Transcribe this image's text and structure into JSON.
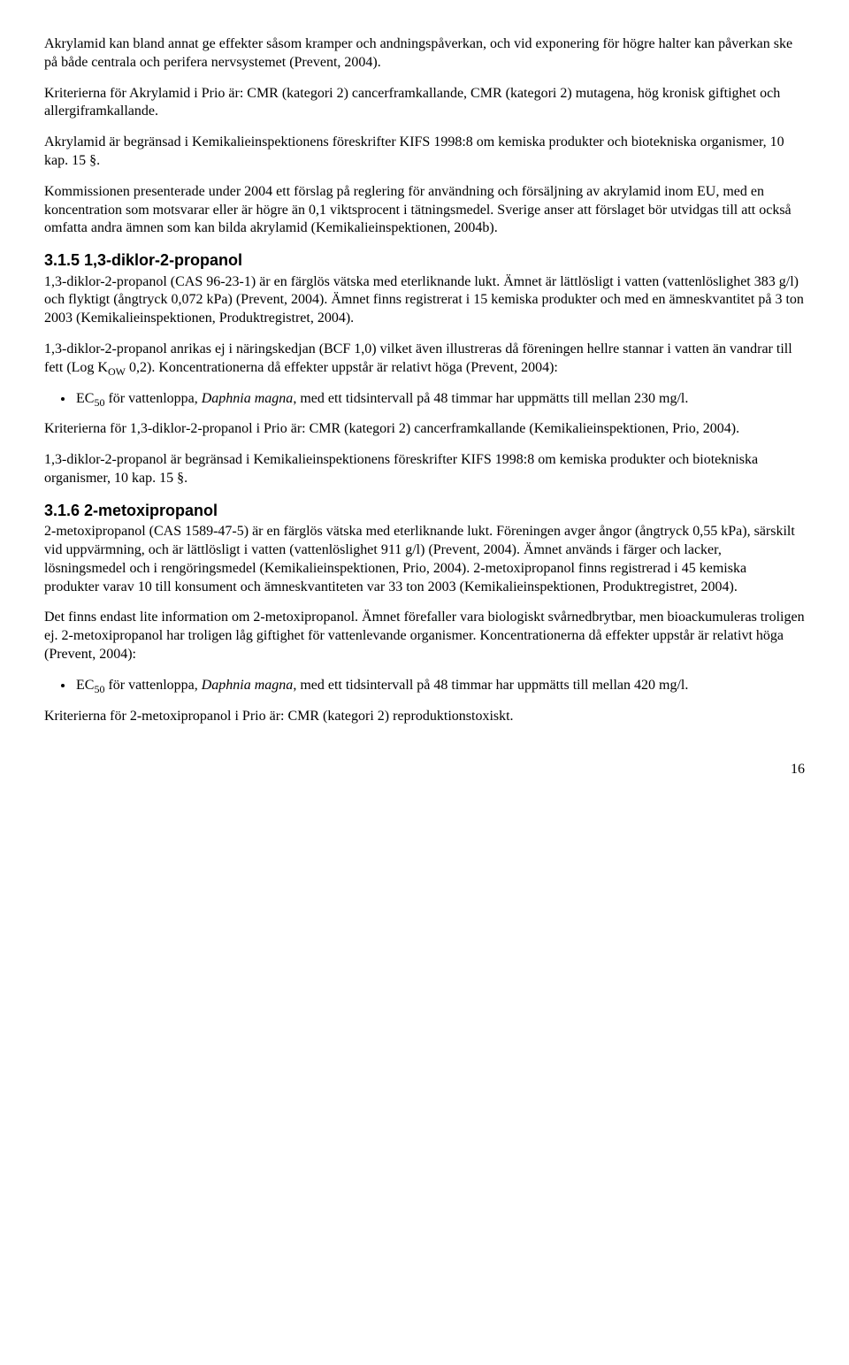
{
  "para1": "Akrylamid kan bland annat ge effekter såsom kramper och andningspåverkan, och vid exponering för högre halter kan påverkan ske på både centrala och perifera nervsystemet (Prevent, 2004).",
  "para2": "Kriterierna för Akrylamid i Prio är: CMR (kategori 2) cancerframkallande, CMR (kategori 2) mutagena, hög kronisk giftighet och allergiframkallande.",
  "para3": "Akrylamid är begränsad i Kemikalieinspektionens föreskrifter KIFS 1998:8 om kemiska produkter och biotekniska organismer, 10 kap. 15 §.",
  "para4": "Kommissionen presenterade under 2004 ett förslag på reglering för användning och försäljning av akrylamid inom EU, med en koncentration som motsvarar eller är högre än 0,1 viktsprocent i tätningsmedel. Sverige anser att förslaget bör utvidgas till att också omfatta andra ämnen som kan bilda akrylamid (Kemikalieinspektionen, 2004b).",
  "h315": "3.1.5 1,3-diklor-2-propanol",
  "para5": "1,3-diklor-2-propanol (CAS 96-23-1) är en färglös vätska med eterliknande lukt. Ämnet är lättlösligt i vatten (vattenlöslighet 383 g/l) och flyktigt (ångtryck 0,072 kPa) (Prevent, 2004). Ämnet finns registrerat i 15 kemiska produkter och med en ämneskvantitet på 3 ton 2003 (Kemikalieinspektionen, Produktregistret, 2004).",
  "para6_pre": "1,3-diklor-2-propanol anrikas ej i näringskedjan (BCF 1,0) vilket även illustreras då föreningen hellre stannar i vatten än vandrar till fett (Log K",
  "para6_sub": "OW",
  "para6_post": " 0,2). Koncentrationerna då effekter uppstår är relativt höga (Prevent, 2004):",
  "bullet1_pre": "EC",
  "bullet1_sub": "50",
  "bullet1_mid": " för vattenloppa, ",
  "bullet1_species": "Daphnia magna",
  "bullet1_post": ", med ett tidsintervall på 48 timmar har uppmätts till mellan 230 mg/l.",
  "para7": "Kriterierna för 1,3-diklor-2-propanol i Prio är: CMR (kategori 2) cancerframkallande (Kemikalieinspektionen, Prio, 2004).",
  "para8": "1,3-diklor-2-propanol är begränsad i Kemikalieinspektionens föreskrifter KIFS 1998:8 om kemiska produkter och biotekniska organismer, 10 kap. 15 §.",
  "h316": "3.1.6 2-metoxipropanol",
  "para9": "2-metoxipropanol (CAS 1589-47-5) är en färglös vätska med eterliknande lukt. Föreningen avger ångor (ångtryck 0,55 kPa), särskilt vid uppvärmning, och är lättlösligt i vatten (vattenlöslighet 911 g/l) (Prevent, 2004). Ämnet används i färger och lacker, lösningsmedel och i rengöringsmedel (Kemikalieinspektionen, Prio, 2004). 2-metoxipropanol finns registrerad i 45 kemiska produkter varav 10 till konsument och ämneskvantiteten var 33 ton 2003 (Kemikalieinspektionen, Produktregistret, 2004).",
  "para10": "Det finns endast lite information om 2-metoxipropanol. Ämnet förefaller vara biologiskt svårnedbrytbar, men bioackumuleras troligen ej. 2-metoxipropanol har troligen låg giftighet för vattenlevande organismer. Koncentrationerna då effekter uppstår är relativt höga (Prevent, 2004):",
  "bullet2_pre": "EC",
  "bullet2_sub": "50",
  "bullet2_mid": " för vattenloppa, ",
  "bullet2_species": "Daphnia magna",
  "bullet2_post": ", med ett tidsintervall på 48 timmar har uppmätts till mellan 420 mg/l.",
  "para11": "Kriterierna för 2-metoxipropanol i Prio är: CMR (kategori 2) reproduktionstoxiskt.",
  "pagenum": "16"
}
